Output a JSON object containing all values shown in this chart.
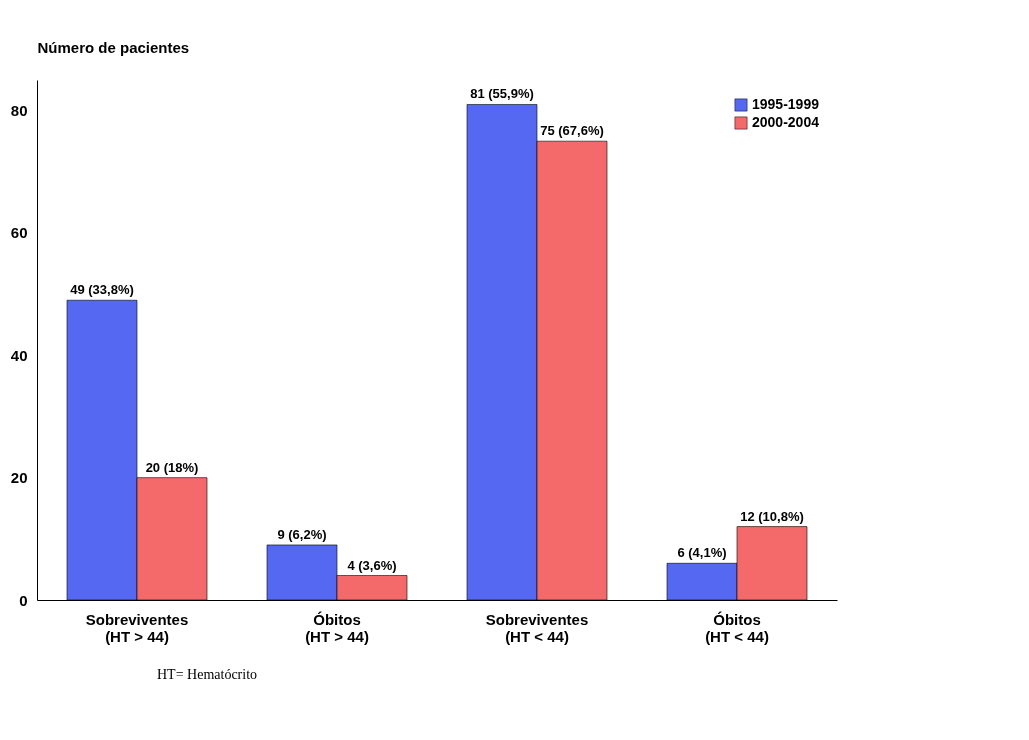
{
  "chart_data": {
    "type": "bar",
    "ylabel": "Número de pacientes",
    "categories": [
      "Sobreviventes\n(HT > 44)",
      "Óbitos\n(HT > 44)",
      "Sobreviventes\n(HT < 44)",
      "Óbitos\n(HT < 44)"
    ],
    "series": [
      {
        "name": "1995-1999",
        "color": "#5468f2",
        "values": [
          49,
          9,
          81,
          6
        ],
        "value_labels": [
          "49 (33,8%)",
          "9 (6,2%)",
          "81 (55,9%)",
          "6 (4,1%)"
        ]
      },
      {
        "name": "2000-2004",
        "color": "#f46a6a",
        "values": [
          20,
          4,
          75,
          12
        ],
        "value_labels": [
          "20 (18%)",
          "4 (3,6%)",
          "75 (67,6%)",
          "12 (10,8%)"
        ]
      }
    ],
    "ylim": [
      0,
      85
    ],
    "yticks": [
      0,
      20,
      40,
      60,
      80
    ],
    "grid": false,
    "legend": "top right",
    "annotations": [
      "HT= Hematócrito"
    ]
  }
}
